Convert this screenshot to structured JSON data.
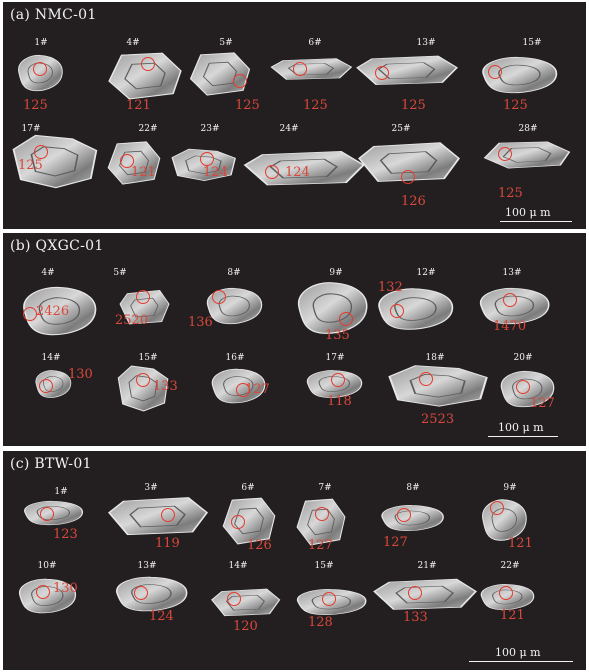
{
  "panels": [
    {
      "title": "(a) NMC-01",
      "scale": "100 μ m",
      "grains": [
        {
          "id": "1#",
          "age": "125"
        },
        {
          "id": "4#",
          "age": "121"
        },
        {
          "id": "5#",
          "age": "125"
        },
        {
          "id": "6#",
          "age": "125"
        },
        {
          "id": "13#",
          "age": "125"
        },
        {
          "id": "15#",
          "age": "125"
        },
        {
          "id": "17#",
          "age": "125"
        },
        {
          "id": "22#",
          "age": "121"
        },
        {
          "id": "23#",
          "age": "124"
        },
        {
          "id": "24#",
          "age": "124"
        },
        {
          "id": "25#",
          "age": "126"
        },
        {
          "id": "28#",
          "age": "125"
        }
      ]
    },
    {
      "title": "(b) QXGC-01",
      "scale": "100 μ m",
      "grains": [
        {
          "id": "4#",
          "age": "2426"
        },
        {
          "id": "5#",
          "age": "2520"
        },
        {
          "id": "8#",
          "age": "136"
        },
        {
          "id": "9#",
          "age": "135"
        },
        {
          "id": "12#",
          "age": "132"
        },
        {
          "id": "13#",
          "age": "1470"
        },
        {
          "id": "14#",
          "age": "130"
        },
        {
          "id": "15#",
          "age": "133"
        },
        {
          "id": "16#",
          "age": "127"
        },
        {
          "id": "17#",
          "age": "118"
        },
        {
          "id": "18#",
          "age": "2523"
        },
        {
          "id": "20#",
          "age": "127"
        }
      ]
    },
    {
      "title": "(c) BTW-01",
      "scale": "100 μ m",
      "grains": [
        {
          "id": "1#",
          "age": "123"
        },
        {
          "id": "3#",
          "age": "119"
        },
        {
          "id": "6#",
          "age": "126"
        },
        {
          "id": "7#",
          "age": "127"
        },
        {
          "id": "8#",
          "age": "127"
        },
        {
          "id": "9#",
          "age": "121"
        },
        {
          "id": "10#",
          "age": "130"
        },
        {
          "id": "13#",
          "age": "124"
        },
        {
          "id": "14#",
          "age": "120"
        },
        {
          "id": "15#",
          "age": "128"
        },
        {
          "id": "21#",
          "age": "133"
        },
        {
          "id": "22#",
          "age": "121"
        }
      ]
    }
  ],
  "colors": {
    "background": "#231f20",
    "label_text": "#f2f2f2",
    "age_text": "#d9483b",
    "spot_circle": "#e33a2e"
  }
}
